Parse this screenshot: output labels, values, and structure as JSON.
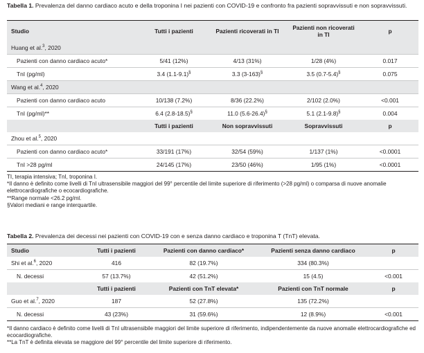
{
  "table1": {
    "caption_label": "Tabella 1.",
    "caption_text": " Prevalenza del danno cardiaco acuto e della troponina I nei pazienti con COVID-19 e confronto fra pazienti sopravvissuti e non sopravvissuti.",
    "headers": [
      "Studio",
      "Tutti i pazienti",
      "Pazienti ricoverati in TI",
      "Pazienti non ricoverati in TI",
      "p"
    ],
    "headers2": [
      "",
      "Tutti i pazienti",
      "Non sopravvissuti",
      "Sopravvissuti",
      "p"
    ],
    "groups": [
      {
        "study": "Huang et al.",
        "ref": "3",
        "year": ", 2020",
        "rows": [
          {
            "label": "Pazienti con danno cardiaco acuto*",
            "c1": "5/41 (12%)",
            "c2": "4/13 (31%)",
            "c3": "1/28 (4%)",
            "p": "0.017"
          },
          {
            "label": "TnI (pg/ml)",
            "c1": "3.4 (1.1-9.1)",
            "c1s": "§",
            "c2": "3.3 (3-163)",
            "c2s": "§",
            "c3": "3.5 (0.7-5.4)",
            "c3s": "§",
            "p": "0.075"
          }
        ]
      },
      {
        "study": "Wang et al.",
        "ref": "4",
        "year": ", 2020",
        "rows": [
          {
            "label": "Pazienti con danno cardiaco acuto",
            "c1": "10/138 (7.2%)",
            "c2": "8/36 (22.2%)",
            "c3": "2/102 (2.0%)",
            "p": "<0.001"
          },
          {
            "label": "TnI (pg/ml)**",
            "c1": "6.4 (2.8-18.5)",
            "c1s": "§",
            "c2": "11.0 (5.6-26.4)",
            "c2s": "§",
            "c3": "5.1 (2.1-9.8)",
            "c3s": "§",
            "p": "0.004"
          }
        ]
      },
      {
        "study": "Zhou et al.",
        "ref": "5",
        "year": ", 2020",
        "rows": [
          {
            "label": "Pazienti con danno cardiaco acuto*",
            "c1": "33/191 (17%)",
            "c2": "32/54 (59%)",
            "c3": "1/137 (1%)",
            "p": "<0.0001"
          },
          {
            "label": "TnI >28 pg/ml",
            "c1": "24/145 (17%)",
            "c2": "23/50 (46%)",
            "c3": "1/95 (1%)",
            "p": "<0.0001"
          }
        ]
      }
    ],
    "notes": [
      "TI, terapia intensiva; TnI, troponina I.",
      "*Il danno è definito come livelli di TnI ultrasensibile maggiori del 99° percentile del limite superiore di riferimento (>28 pg/ml) o comparsa di nuove anomalie elettrocardiografiche o ecocardiografiche.",
      "**Range normale <26.2 pg/ml.",
      "§Valori mediani e range interquartile."
    ]
  },
  "table2": {
    "caption_label": "Tabella 2.",
    "caption_text": " Prevalenza dei decessi nei pazienti con COVID-19 con e senza danno cardiaco e troponina T (TnT) elevata.",
    "headers": [
      "Studio",
      "Tutti i pazienti",
      "Pazienti con danno cardiaco*",
      "Pazienti senza danno cardiaco",
      "p"
    ],
    "headers2": [
      "",
      "Tutti i pazienti",
      "Pazienti con TnT elevata*",
      "Pazienti con TnT normale",
      "p"
    ],
    "groups": [
      {
        "study": "Shi et al.",
        "ref": "6",
        "year": ", 2020",
        "top": {
          "c1": "416",
          "c2": "82 (19.7%)",
          "c3": "334 (80.3%)",
          "p": ""
        },
        "row": {
          "label": "N. decessi",
          "c1": "57 (13.7%)",
          "c2": "42 (51.2%)",
          "c3": "15 (4.5)",
          "p": "<0.001"
        }
      },
      {
        "study": "Guo et al.",
        "ref": "7",
        "year": ", 2020",
        "top": {
          "c1": "187",
          "c2": "52 (27.8%)",
          "c3": "135 (72.2%)",
          "p": ""
        },
        "row": {
          "label": "N. decessi",
          "c1": "43 (23%)",
          "c2": "31 (59.6%)",
          "c3": "12 (8.9%)",
          "p": "<0.001"
        }
      }
    ],
    "notes": [
      "*Il danno cardiaco è definito come livelli di TnI ultrasensibile maggiori del limite superiore di riferimento, indipendentemente da nuove anomalie elettrocardiografiche ed ecocardiografiche.",
      "**La TnT è definita elevata se maggiore del 99° percentile del limite superiore di riferimento."
    ]
  }
}
